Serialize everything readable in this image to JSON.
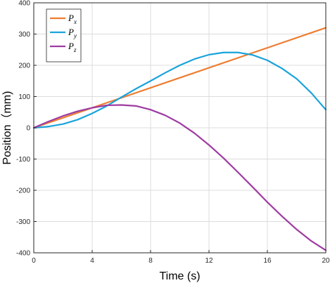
{
  "chart_data": {
    "type": "line",
    "title": "",
    "xlabel": "Time (s)",
    "ylabel": "Position（mm)",
    "xlim": [
      0,
      20
    ],
    "ylim": [
      -400,
      400
    ],
    "xticks": [
      0,
      4,
      8,
      12,
      16,
      20
    ],
    "yticks": [
      -400,
      -300,
      -200,
      -100,
      0,
      100,
      200,
      300,
      400
    ],
    "grid": true,
    "legend_position": "top-left",
    "series": [
      {
        "name": "P",
        "subscript": "x",
        "color": "#ED7D31",
        "x": [
          0,
          20
        ],
        "y": [
          0,
          320
        ]
      },
      {
        "name": "P",
        "subscript": "y",
        "color": "#1AA3DC",
        "x": [
          0,
          1,
          2,
          3,
          4,
          5,
          6,
          7,
          8,
          9,
          10,
          11,
          12,
          13,
          14,
          15,
          16,
          17,
          18,
          19,
          20
        ],
        "y": [
          0,
          4,
          12,
          26,
          46,
          70,
          98,
          125,
          150,
          176,
          200,
          220,
          234,
          241,
          241,
          233,
          216,
          190,
          157,
          112,
          58
        ]
      },
      {
        "name": "P",
        "subscript": "z",
        "color": "#9E3BA2",
        "x": [
          0,
          1,
          2,
          3,
          4,
          5,
          6,
          7,
          8,
          9,
          10,
          11,
          12,
          13,
          14,
          15,
          16,
          17,
          18,
          19,
          20
        ],
        "y": [
          0,
          20,
          38,
          53,
          64,
          72,
          73,
          70,
          58,
          40,
          15,
          -17,
          -55,
          -97,
          -143,
          -190,
          -238,
          -283,
          -325,
          -362,
          -392
        ]
      }
    ]
  }
}
